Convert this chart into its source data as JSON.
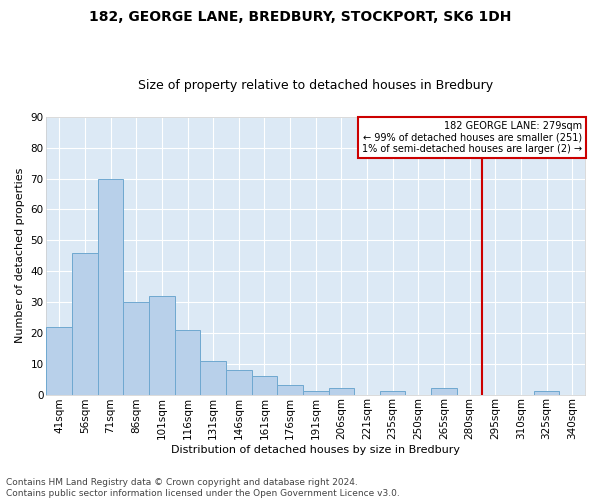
{
  "title1": "182, GEORGE LANE, BREDBURY, STOCKPORT, SK6 1DH",
  "title2": "Size of property relative to detached houses in Bredbury",
  "xlabel": "Distribution of detached houses by size in Bredbury",
  "ylabel": "Number of detached properties",
  "footnote": "Contains HM Land Registry data © Crown copyright and database right 2024.\nContains public sector information licensed under the Open Government Licence v3.0.",
  "categories": [
    "41sqm",
    "56sqm",
    "71sqm",
    "86sqm",
    "101sqm",
    "116sqm",
    "131sqm",
    "146sqm",
    "161sqm",
    "176sqm",
    "191sqm",
    "206sqm",
    "221sqm",
    "235sqm",
    "250sqm",
    "265sqm",
    "280sqm",
    "295sqm",
    "310sqm",
    "325sqm",
    "340sqm"
  ],
  "values": [
    22,
    46,
    70,
    30,
    32,
    21,
    11,
    8,
    6,
    3,
    1,
    2,
    0,
    1,
    0,
    2,
    0,
    0,
    0,
    1,
    0
  ],
  "bar_color": "#b8d0ea",
  "bar_edge_color": "#6fa8d0",
  "annotation_text": "182 GEORGE LANE: 279sqm\n← 99% of detached houses are smaller (251)\n1% of semi-detached houses are larger (2) →",
  "annotation_box_color": "#cc0000",
  "ylim": [
    0,
    90
  ],
  "yticks": [
    0,
    10,
    20,
    30,
    40,
    50,
    60,
    70,
    80,
    90
  ],
  "bg_color": "#ffffff",
  "plot_bg_color": "#dce9f5",
  "grid_color": "#ffffff",
  "title1_fontsize": 10,
  "title2_fontsize": 9,
  "xlabel_fontsize": 8,
  "ylabel_fontsize": 8,
  "tick_fontsize": 7.5,
  "footnote_fontsize": 6.5,
  "line_x_index": 16.5
}
